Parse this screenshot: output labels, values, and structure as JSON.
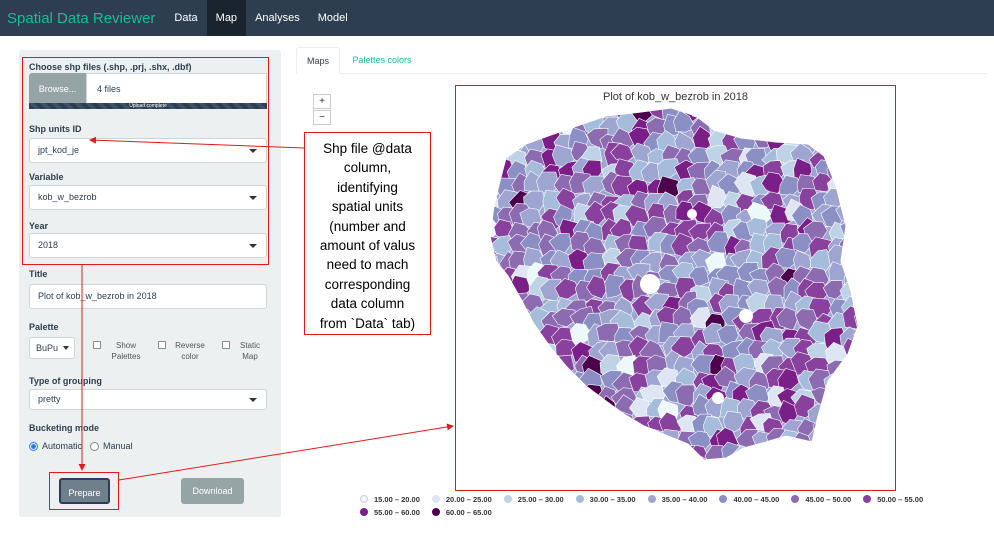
{
  "navbar": {
    "brand": "Spatial Data Reviewer",
    "items": [
      {
        "label": "Data",
        "active": false
      },
      {
        "label": "Map",
        "active": true
      },
      {
        "label": "Analyses",
        "active": false
      },
      {
        "label": "Model",
        "active": false
      }
    ]
  },
  "sidebar": {
    "file_label": "Choose shp files (.shp, .prj, .shx, .dbf)",
    "browse_label": "Browse...",
    "files_value": "4 files",
    "upload_status": "Upload complete",
    "upload_progress_pct": 100,
    "units_label": "Shp units ID",
    "units_value": "jpt_kod_je",
    "variable_label": "Variable",
    "variable_value": "kob_w_bezrob",
    "year_label": "Year",
    "year_value": "2018",
    "title_label": "Title",
    "title_value": "Plot of kob_w_bezrob in 2018",
    "palette_label": "Palette",
    "palette_value": "BuPu",
    "show_palettes": "Show Palettes",
    "reverse_color": "Reverse color",
    "static_map": "Static Map",
    "grouping_label": "Type of grouping",
    "grouping_value": "pretty",
    "bucketing_label": "Bucketing mode",
    "bucketing_automatic": "Automatic",
    "bucketing_manual": "Manual",
    "prepare_label": "Prepare",
    "download_label": "Download"
  },
  "tabs": [
    {
      "label": "Maps",
      "active": true
    },
    {
      "label": "Palettes colors",
      "active": false
    }
  ],
  "zoom": {
    "in": "+",
    "out": "−"
  },
  "annotation": {
    "lines": [
      "Shp file @data",
      "column,",
      "identifying",
      "spatial units",
      "(number and",
      "amount of valus",
      "need to mach",
      "corresponding",
      "data column",
      "from `Data` tab)"
    ]
  },
  "map": {
    "title": "Plot of kob_w_bezrob in 2018"
  },
  "legend": [
    {
      "label": "15.00 – 20.00",
      "color": "#edf8fb"
    },
    {
      "label": "20.00 – 25.00",
      "color": "#dde6f2"
    },
    {
      "label": "25.00 – 30.00",
      "color": "#bfd3e6"
    },
    {
      "label": "30.00 – 35.00",
      "color": "#a5bddb"
    },
    {
      "label": "35.00 – 40.00",
      "color": "#9ea5d0"
    },
    {
      "label": "40.00 – 45.00",
      "color": "#8c8fc4"
    },
    {
      "label": "45.00 – 50.00",
      "color": "#8c6bb1"
    },
    {
      "label": "50.00 – 55.00",
      "color": "#88419d"
    },
    {
      "label": "55.00 – 60.00",
      "color": "#7a1f88"
    },
    {
      "label": "60.00 – 65.00",
      "color": "#4d004b"
    }
  ]
}
